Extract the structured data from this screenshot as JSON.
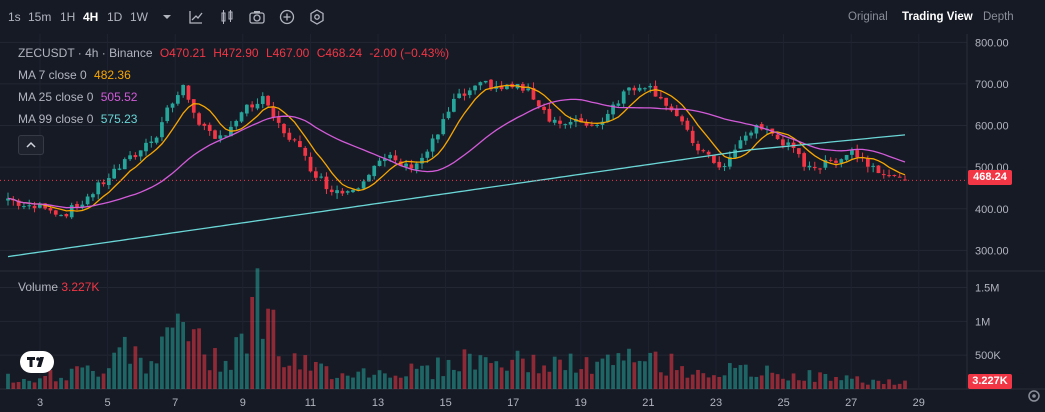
{
  "toolbar": {
    "timeframes": [
      "1s",
      "15m",
      "1H",
      "4H",
      "1D",
      "1W"
    ],
    "active_timeframe": "4H",
    "views": [
      "Original",
      "Trading View",
      "Depth"
    ],
    "active_view": "Trading View"
  },
  "legend": {
    "symbol": "ZECUSDT · 4h · Binance",
    "open": "O470.21",
    "high": "H472.90",
    "low": "L467.00",
    "close": "C468.24",
    "change": "-2.00 (−0.43%)",
    "ma7_label": "MA 7 close 0",
    "ma7_value": "482.36",
    "ma25_label": "MA 25 close 0",
    "ma25_value": "505.52",
    "ma99_label": "MA 99 close 0",
    "ma99_value": "575.23"
  },
  "volume": {
    "label": "Volume",
    "value": "3.227K",
    "tag": "3.227K"
  },
  "last_price_tag": "468.24",
  "colors": {
    "up": "#26a69a",
    "down": "#f23645",
    "ma7": "#f7a600",
    "ma25": "#d35bd9",
    "ma99": "#6ad6d6",
    "background": "#161a25"
  },
  "chart_data": {
    "type": "candlestick",
    "price_axis_ticks": [
      800,
      700,
      600,
      500,
      400,
      300
    ],
    "price_axis_labels": [
      "800.00",
      "700.00",
      "600.00",
      "500.00",
      "400.00",
      "300.00"
    ],
    "price_range": [
      260,
      820
    ],
    "volume_axis_ticks": [
      1500,
      1000,
      500
    ],
    "volume_axis_labels": [
      "1.5M",
      "1M",
      "500K"
    ],
    "volume_range": [
      0,
      1700
    ],
    "x_labels": [
      "3",
      "5",
      "7",
      "9",
      "11",
      "13",
      "15",
      "17",
      "19",
      "21",
      "23",
      "25",
      "27",
      "29"
    ],
    "last_price": 468.24,
    "close_anchors": [
      [
        0,
        425
      ],
      [
        4,
        400
      ],
      [
        7,
        410
      ],
      [
        10,
        385
      ],
      [
        13,
        405
      ],
      [
        16,
        440
      ],
      [
        20,
        490
      ],
      [
        24,
        530
      ],
      [
        28,
        580
      ],
      [
        30,
        640
      ],
      [
        33,
        690
      ],
      [
        36,
        610
      ],
      [
        39,
        560
      ],
      [
        42,
        600
      ],
      [
        45,
        640
      ],
      [
        48,
        660
      ],
      [
        51,
        600
      ],
      [
        54,
        560
      ],
      [
        57,
        500
      ],
      [
        60,
        455
      ],
      [
        63,
        440
      ],
      [
        66,
        460
      ],
      [
        69,
        505
      ],
      [
        72,
        520
      ],
      [
        75,
        500
      ],
      [
        78,
        520
      ],
      [
        81,
        580
      ],
      [
        84,
        660
      ],
      [
        87,
        680
      ],
      [
        90,
        700
      ],
      [
        93,
        690
      ],
      [
        96,
        695
      ],
      [
        99,
        670
      ],
      [
        102,
        620
      ],
      [
        105,
        600
      ],
      [
        108,
        610
      ],
      [
        111,
        600
      ],
      [
        114,
        650
      ],
      [
        117,
        690
      ],
      [
        120,
        700
      ],
      [
        123,
        670
      ],
      [
        126,
        620
      ],
      [
        129,
        560
      ],
      [
        132,
        520
      ],
      [
        135,
        500
      ],
      [
        138,
        560
      ],
      [
        141,
        600
      ],
      [
        144,
        580
      ],
      [
        147,
        550
      ],
      [
        150,
        510
      ],
      [
        153,
        500
      ],
      [
        156,
        520
      ],
      [
        159,
        540
      ],
      [
        162,
        510
      ],
      [
        165,
        490
      ],
      [
        168,
        468
      ]
    ],
    "volume_anchors": [
      [
        0,
        200
      ],
      [
        10,
        220
      ],
      [
        18,
        350
      ],
      [
        22,
        900
      ],
      [
        27,
        320
      ],
      [
        33,
        1250
      ],
      [
        37,
        500
      ],
      [
        42,
        600
      ],
      [
        48,
        1600
      ],
      [
        52,
        450
      ],
      [
        60,
        300
      ],
      [
        70,
        280
      ],
      [
        80,
        320
      ],
      [
        86,
        500
      ],
      [
        92,
        450
      ],
      [
        100,
        420
      ],
      [
        110,
        380
      ],
      [
        120,
        500
      ],
      [
        130,
        300
      ],
      [
        140,
        280
      ],
      [
        150,
        220
      ],
      [
        160,
        150
      ],
      [
        168,
        100
      ]
    ],
    "ma_periods": [
      7,
      25,
      99
    ]
  }
}
